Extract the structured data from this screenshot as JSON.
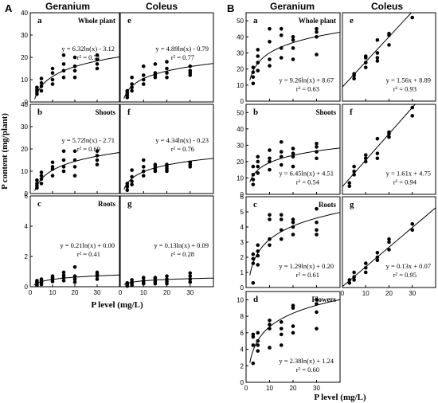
{
  "figure": {
    "side_labels": [
      "A",
      "B"
    ],
    "column_headers": [
      "Geranium",
      "Coleus",
      "Geranium",
      "Coleus"
    ],
    "y_axis_label": "P content (mg/plant)",
    "x_axis_label": "P level (mg/L)"
  },
  "chart_data": [
    {
      "id": "A-a",
      "panel": "a",
      "type": "scatter",
      "part": "Whole plant",
      "plant": "Geranium",
      "xlim": [
        0,
        40
      ],
      "ylim": [
        0,
        40
      ],
      "xticks": [
        0,
        10,
        20,
        30
      ],
      "yticks": [
        0,
        10,
        20,
        30,
        40
      ],
      "x": [
        3,
        3,
        3,
        3,
        5,
        5,
        5,
        5,
        10,
        10,
        10,
        10,
        15,
        15,
        15,
        15,
        20,
        20,
        20,
        20,
        30,
        30,
        30,
        30
      ],
      "y": [
        3.5,
        4.5,
        5.5,
        6.5,
        5,
        7,
        8.5,
        10.5,
        8,
        10,
        13,
        15,
        11,
        14,
        17,
        21,
        11,
        14,
        16,
        20,
        15,
        17,
        19,
        21
      ],
      "fit": {
        "form": "log",
        "a": 6.32,
        "b": -3.12
      },
      "equation": "y = 6.32ln(x) - 3.12",
      "r2": "r² = 0.71"
    },
    {
      "id": "A-e",
      "panel": "e",
      "type": "scatter",
      "part": "",
      "plant": "Coleus",
      "xlim": [
        0,
        40
      ],
      "ylim": [
        0,
        40
      ],
      "xticks": [
        0,
        10,
        20,
        30
      ],
      "yticks": [],
      "x": [
        3,
        3,
        3,
        3,
        5,
        5,
        5,
        5,
        10,
        10,
        10,
        10,
        15,
        15,
        15,
        15,
        20,
        20,
        20,
        20,
        30,
        30,
        30,
        30
      ],
      "y": [
        2,
        3,
        4,
        5,
        5,
        6.5,
        8,
        11,
        8,
        10,
        12,
        16,
        11,
        12,
        13,
        17,
        11,
        13,
        15,
        18,
        12,
        13,
        14,
        16
      ],
      "fit": {
        "form": "log",
        "a": 4.89,
        "b": -0.79
      },
      "equation": "y = 4.89ln(x) - 0.79",
      "r2": "r² = 0.77"
    },
    {
      "id": "A-b",
      "panel": "b",
      "type": "scatter",
      "part": "Shoots",
      "plant": "Geranium",
      "xlim": [
        0,
        40
      ],
      "ylim": [
        0,
        40
      ],
      "xticks": [
        0,
        10,
        20,
        30
      ],
      "yticks": [
        0,
        10,
        20,
        30,
        40
      ],
      "x": [
        3,
        3,
        3,
        3,
        5,
        5,
        5,
        5,
        10,
        10,
        10,
        10,
        15,
        15,
        15,
        15,
        20,
        20,
        20,
        20,
        30,
        30,
        30,
        30
      ],
      "y": [
        2.5,
        3.5,
        4.5,
        6,
        4.5,
        6.5,
        8,
        9.5,
        8,
        11,
        12,
        14,
        10,
        12,
        15,
        19,
        8,
        12,
        15,
        19,
        13,
        15,
        17,
        19
      ],
      "fit": {
        "form": "log",
        "a": 5.72,
        "b": -2.71
      },
      "equation": "y = 5.72ln(x) - 2.71",
      "r2": "r² = 0.69"
    },
    {
      "id": "A-f",
      "panel": "f",
      "type": "scatter",
      "part": "",
      "plant": "Coleus",
      "xlim": [
        0,
        40
      ],
      "ylim": [
        0,
        40
      ],
      "xticks": [
        0,
        10,
        20,
        30
      ],
      "yticks": [],
      "x": [
        3,
        3,
        3,
        3,
        5,
        5,
        5,
        5,
        10,
        10,
        10,
        10,
        15,
        15,
        15,
        15,
        20,
        20,
        20,
        20,
        30,
        30,
        30,
        30
      ],
      "y": [
        1.5,
        3,
        3.5,
        4.5,
        4,
        5.5,
        7.5,
        10.5,
        8,
        10,
        12,
        15,
        10,
        11,
        12,
        13,
        10,
        11,
        12,
        13,
        12,
        13,
        14,
        14
      ],
      "fit": {
        "form": "log",
        "a": 4.34,
        "b": -0.23
      },
      "equation": "y = 4.34ln(x) - 0.23",
      "r2": "r² = 0.76"
    },
    {
      "id": "A-c",
      "panel": "c",
      "type": "scatter",
      "part": "Roots",
      "plant": "Geranium",
      "xlim": [
        0,
        40
      ],
      "ylim": [
        0,
        6
      ],
      "xticks": [
        0,
        10,
        20,
        30
      ],
      "yticks": [
        0,
        2,
        4,
        6
      ],
      "x": [
        3,
        3,
        3,
        3,
        5,
        5,
        5,
        5,
        10,
        10,
        10,
        10,
        15,
        15,
        15,
        15,
        20,
        20,
        20,
        20,
        30,
        30,
        30,
        30
      ],
      "y": [
        0.1,
        0.2,
        0.3,
        0.4,
        0.15,
        0.3,
        0.4,
        0.5,
        0.35,
        0.5,
        0.6,
        0.7,
        0.4,
        0.6,
        0.75,
        0.95,
        0.3,
        0.5,
        0.7,
        1.3,
        0.5,
        0.7,
        0.8,
        0.95
      ],
      "fit": {
        "form": "log",
        "a": 0.21,
        "b": 0.0
      },
      "equation": "y = 0.21ln(x) + 0.00",
      "r2": "r² = 0.41"
    },
    {
      "id": "A-g",
      "panel": "g",
      "type": "scatter",
      "part": "",
      "plant": "Coleus",
      "xlim": [
        0,
        40
      ],
      "ylim": [
        0,
        6
      ],
      "xticks": [
        0,
        10,
        20,
        30
      ],
      "yticks": [],
      "x": [
        3,
        3,
        3,
        3,
        5,
        5,
        5,
        5,
        10,
        10,
        10,
        10,
        15,
        15,
        15,
        15,
        20,
        20,
        20,
        20,
        30,
        30,
        30,
        30
      ],
      "y": [
        0.05,
        0.1,
        0.15,
        0.25,
        0.1,
        0.2,
        0.3,
        0.45,
        0.2,
        0.3,
        0.4,
        0.6,
        0.2,
        0.3,
        0.45,
        0.6,
        0.2,
        0.35,
        0.5,
        0.7,
        0.3,
        0.5,
        0.7,
        0.9
      ],
      "fit": {
        "form": "log",
        "a": 0.13,
        "b": 0.09
      },
      "equation": "y = 0.13ln(x) + 0.09",
      "r2": "r² = 0.28"
    },
    {
      "id": "B-a",
      "panel": "a",
      "type": "scatter",
      "part": "Whole plant",
      "plant": "Geranium",
      "xlim": [
        0,
        40
      ],
      "ylim": [
        0,
        55
      ],
      "xticks": [
        0,
        10,
        20,
        30
      ],
      "yticks": [
        0,
        10,
        20,
        30,
        40,
        50
      ],
      "x": [
        3,
        3,
        3,
        3,
        5,
        5,
        5,
        5,
        10,
        10,
        10,
        10,
        15,
        15,
        15,
        15,
        20,
        20,
        20,
        20,
        30,
        30,
        30,
        30
      ],
      "y": [
        11,
        15,
        18,
        21,
        19,
        24,
        28,
        32,
        22,
        26,
        37,
        45,
        27,
        33,
        41,
        45,
        26,
        33,
        38,
        40,
        29,
        40,
        43,
        45
      ],
      "fit": {
        "form": "log",
        "a": 9.26,
        "b": 8.67
      },
      "equation": "y = 9.26ln(x) + 8.67",
      "r2": "r² = 0.63"
    },
    {
      "id": "B-e",
      "panel": "e",
      "type": "scatter",
      "part": "",
      "plant": "Coleus",
      "xlim": [
        0,
        40
      ],
      "ylim": [
        0,
        55
      ],
      "xticks": [
        0,
        10,
        20,
        30
      ],
      "yticks": [],
      "x": [
        5,
        5,
        5,
        10,
        10,
        10,
        10,
        15,
        15,
        15,
        15,
        20,
        20,
        20,
        30
      ],
      "y": [
        14,
        16,
        17,
        21,
        24,
        27,
        28,
        25,
        27,
        30,
        38,
        35,
        41,
        42,
        52
      ],
      "fit": {
        "form": "linear",
        "a": 1.56,
        "b": 8.89
      },
      "equation": "y = 1.56x + 8.89",
      "r2": "r² = 0.93"
    },
    {
      "id": "B-b",
      "panel": "b",
      "type": "scatter",
      "part": "Shoots",
      "plant": "Geranium",
      "xlim": [
        0,
        40
      ],
      "ylim": [
        0,
        55
      ],
      "xticks": [
        0,
        10,
        20,
        30
      ],
      "yticks": [
        0,
        10,
        20,
        30,
        40,
        50
      ],
      "x": [
        3,
        3,
        3,
        3,
        5,
        5,
        5,
        5,
        10,
        10,
        10,
        10,
        15,
        15,
        15,
        15,
        20,
        20,
        20,
        20,
        30,
        30,
        30,
        30
      ],
      "y": [
        6,
        9,
        12,
        17,
        13,
        17,
        20,
        23,
        15,
        20,
        22,
        27,
        18,
        23,
        26,
        32,
        17,
        23,
        25,
        28,
        22,
        26,
        29,
        31
      ],
      "fit": {
        "form": "log",
        "a": 6.45,
        "b": 4.51
      },
      "equation": "y = 6.45ln(x) + 4.51",
      "r2": "r² = 0.54"
    },
    {
      "id": "B-f",
      "panel": "f",
      "type": "scatter",
      "part": "",
      "plant": "Coleus",
      "xlim": [
        0,
        40
      ],
      "ylim": [
        0,
        55
      ],
      "xticks": [
        0,
        10,
        20,
        30
      ],
      "yticks": [],
      "x": [
        3,
        3,
        5,
        5,
        5,
        10,
        10,
        10,
        15,
        15,
        15,
        20,
        20,
        20,
        30,
        30
      ],
      "y": [
        5,
        7,
        12,
        14,
        17,
        20,
        22,
        24,
        22,
        25,
        34,
        35,
        37,
        38,
        48,
        53
      ],
      "fit": {
        "form": "linear",
        "a": 1.61,
        "b": 4.75
      },
      "equation": "y = 1.61x + 4.75",
      "r2": "r² = 0.94"
    },
    {
      "id": "B-c",
      "panel": "c",
      "type": "scatter",
      "part": "Roots",
      "plant": "Geranium",
      "xlim": [
        0,
        40
      ],
      "ylim": [
        0,
        6
      ],
      "xticks": [
        0,
        10,
        20,
        30
      ],
      "yticks": [
        0,
        1,
        2,
        3,
        4,
        5,
        6
      ],
      "x": [
        3,
        3,
        3,
        3,
        5,
        5,
        5,
        5,
        10,
        10,
        10,
        10,
        15,
        15,
        15,
        15,
        20,
        20,
        20,
        20,
        30,
        30,
        30,
        30
      ],
      "y": [
        0.3,
        1.6,
        1.9,
        2.2,
        1.5,
        2.1,
        2.4,
        2.8,
        2.8,
        3.2,
        4.5,
        4.8,
        3.2,
        3.8,
        4.5,
        4.8,
        3.5,
        4.0,
        4.3,
        4.5,
        3.5,
        3.8,
        4.3,
        5.2
      ],
      "fit": {
        "form": "log",
        "a": 1.29,
        "b": 0.2
      },
      "equation": "y = 1.29ln(x) + 0.20",
      "r2": "r² = 0.61"
    },
    {
      "id": "B-g",
      "panel": "g",
      "type": "scatter",
      "part": "",
      "plant": "Coleus",
      "xlim": [
        0,
        40
      ],
      "ylim": [
        0,
        6
      ],
      "xticks": [
        0,
        10,
        20,
        30
      ],
      "yticks": [],
      "x": [
        3,
        3,
        5,
        5,
        5,
        10,
        10,
        10,
        15,
        15,
        15,
        20,
        20,
        20,
        30,
        30
      ],
      "y": [
        0.3,
        0.5,
        0.5,
        0.7,
        1.0,
        1.0,
        1.3,
        1.6,
        1.8,
        2.0,
        2.3,
        2.5,
        3.0,
        3.2,
        3.8,
        4.2
      ],
      "fit": {
        "form": "linear",
        "a": 0.13,
        "b": 0.07
      },
      "equation": "y = 0.13x + 0.07",
      "r2": "r² = 0.95"
    },
    {
      "id": "B-d",
      "panel": "d",
      "type": "scatter",
      "part": "Flowers",
      "plant": "Geranium",
      "xlim": [
        0,
        40
      ],
      "ylim": [
        0,
        11
      ],
      "xticks": [
        0,
        10,
        20,
        30
      ],
      "yticks": [
        0,
        2,
        4,
        6,
        8,
        10
      ],
      "x": [
        3,
        3,
        3,
        3,
        5,
        5,
        5,
        5,
        10,
        10,
        10,
        10,
        15,
        15,
        15,
        15,
        20,
        20,
        20,
        20,
        30,
        30,
        30,
        30
      ],
      "y": [
        2.3,
        4.5,
        5.5,
        5.8,
        3.8,
        4.5,
        5.0,
        6.0,
        4.2,
        6.5,
        7.0,
        7.5,
        4.5,
        5.8,
        6.5,
        7.3,
        6.0,
        6.8,
        9.0,
        9.3,
        6.5,
        8.5,
        9.5,
        10.0
      ],
      "fit": {
        "form": "log",
        "a": 2.38,
        "b": 1.24
      },
      "equation": "y = 2.38ln(x) + 1.24",
      "r2": "r² = 0.60"
    }
  ]
}
